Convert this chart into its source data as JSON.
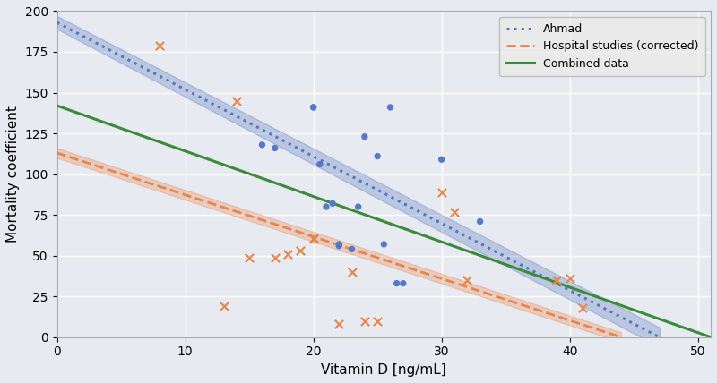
{
  "title": "",
  "xlabel": "Vitamin D [ng/mL]",
  "ylabel": "Mortality coefficient",
  "xlim": [
    0,
    51
  ],
  "ylim": [
    0,
    200
  ],
  "xticks": [
    0,
    10,
    20,
    30,
    40,
    50
  ],
  "yticks": [
    0,
    25,
    50,
    75,
    100,
    125,
    150,
    175,
    200
  ],
  "background_color": "#e8eaf2",
  "grid_color": "#ffffff",
  "blue_dots_x": [
    16,
    17,
    20,
    20,
    20.5,
    21,
    21.5,
    22,
    22,
    23,
    23.5,
    24,
    25,
    25.5,
    26,
    26.5,
    27,
    30,
    33
  ],
  "blue_dots_y": [
    118,
    116,
    141,
    141,
    106,
    80,
    82,
    57,
    56,
    54,
    80,
    123,
    111,
    57,
    141,
    33,
    33,
    109,
    71
  ],
  "orange_x_x": [
    8,
    13,
    14,
    15,
    17,
    18,
    19,
    20,
    20,
    22,
    23,
    24,
    25,
    30,
    31,
    32,
    39,
    40,
    41
  ],
  "orange_x_y": [
    179,
    19,
    145,
    49,
    49,
    51,
    53,
    60,
    61,
    8,
    40,
    10,
    10,
    89,
    77,
    35,
    35,
    36,
    18
  ],
  "ahmad_line_x0": 0,
  "ahmad_line_y0": 193,
  "ahmad_line_x1": 47,
  "ahmad_line_y1": 0,
  "ahmad_color": "#5577bb",
  "ahmad_ci_width_at_start": 4,
  "ahmad_ci_width_at_end": 6,
  "hospital_line_x0": 0,
  "hospital_line_y0": 113,
  "hospital_line_x1": 44,
  "hospital_line_y1": 0,
  "hospital_color": "#e8854a",
  "hospital_ci_width_at_start": 3,
  "hospital_ci_width_at_end": 3,
  "combined_line_x0": 0,
  "combined_line_y0": 142,
  "combined_line_x1": 51,
  "combined_line_y1": 0,
  "combined_color": "#3a8c3a",
  "dot_color": "#5577cc",
  "cross_color": "#e8854a",
  "legend_loc": "upper right",
  "figsize": [
    8.0,
    4.28
  ],
  "dpi": 100
}
